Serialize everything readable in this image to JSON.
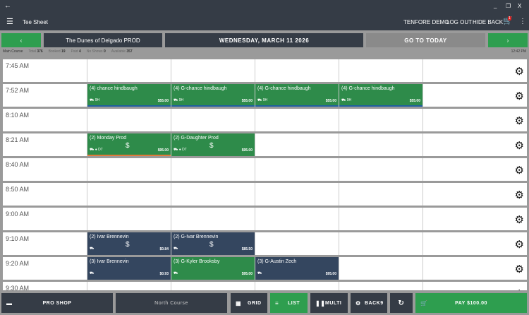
{
  "window": {
    "back_icon": "arrow-left-icon",
    "min": "_",
    "restore": "❐",
    "close": "X"
  },
  "appbar": {
    "title": "Tee Sheet",
    "user": "TENFORE DEMO",
    "logout": "LOG OUT",
    "hide_back": "HIDE BACK",
    "cart_count": "1"
  },
  "nav": {
    "course_name": "The Dunes of Delgado PROD",
    "date": "WEDNESDAY, MARCH 11 2026",
    "go_today": "GO TO TODAY"
  },
  "stats": {
    "course": "Main Course",
    "total_label": "Total",
    "total": "376",
    "booked_label": "Booked",
    "booked": "19",
    "paid_label": "Paid",
    "paid": "4",
    "noshow_label": "No Shows",
    "noshow": "0",
    "available_label": "Available",
    "available": "357",
    "time": "12:42 PM"
  },
  "colors": {
    "green": "#2e8b4a",
    "navy": "#34465f",
    "orange": "#e07a3a",
    "blue": "#1f5fa0"
  },
  "rows": [
    {
      "time": "7:45 AM",
      "slots": []
    },
    {
      "time": "7:52 AM",
      "slots": [
        {
          "col": 0,
          "name": "(4) chance hindbaugh",
          "info": "9H",
          "price": "$55.00",
          "color": "green",
          "bar": "blue"
        },
        {
          "col": 1,
          "name": "(4) G-chance hindbaugh",
          "info": "9H",
          "price": "$55.00",
          "color": "green",
          "bar": "blue"
        },
        {
          "col": 2,
          "name": "(4) G-chance hindbaugh",
          "info": "9H",
          "price": "$55.00",
          "color": "green",
          "bar": "blue"
        },
        {
          "col": 3,
          "name": "(4) G-chance hindbaugh",
          "info": "9H",
          "price": "$55.00",
          "color": "green",
          "bar": "blue"
        }
      ]
    },
    {
      "time": "8:10 AM",
      "slots": []
    },
    {
      "time": "8:21 AM",
      "slots": [
        {
          "col": 0,
          "name": "(2) Monday Prod",
          "info": "● D7",
          "price": "$95.00",
          "color": "green",
          "bar": "orange",
          "dollar": "$"
        },
        {
          "col": 1,
          "name": "(2) G-Daughter Prod",
          "info": "● D7",
          "price": "$95.00",
          "color": "green",
          "dollar": "$"
        }
      ]
    },
    {
      "time": "8:40 AM",
      "slots": []
    },
    {
      "time": "8:50 AM",
      "slots": []
    },
    {
      "time": "9:00 AM",
      "slots": []
    },
    {
      "time": "9:10 AM",
      "slots": [
        {
          "col": 0,
          "name": "(2) Ivar Brennevin",
          "info": "",
          "price": "$0.84",
          "color": "navy",
          "dollar": "$"
        },
        {
          "col": 1,
          "name": "(2) G-Ivar Brennevin",
          "info": "",
          "price": "$85.50",
          "color": "navy",
          "dollar": "$"
        }
      ]
    },
    {
      "time": "9:20 AM",
      "slots": [
        {
          "col": 0,
          "name": "(3) Ivar Brennevin",
          "info": "",
          "price": "$0.93",
          "color": "navy"
        },
        {
          "col": 1,
          "name": "(3) G-Kyler Brooksby",
          "info": "",
          "price": "$95.00",
          "color": "green"
        },
        {
          "col": 2,
          "name": "(3) G-Austin Zech",
          "info": "",
          "price": "$95.00",
          "color": "navy"
        }
      ]
    },
    {
      "time": "9:30 AM",
      "slots": []
    }
  ],
  "bottom": {
    "pro_shop": "PRO SHOP",
    "course": "North Course",
    "grid": "GRID",
    "list": "LIST",
    "multi": "MULTI",
    "back9": "BACK9",
    "pay": "PAY $100.00"
  }
}
